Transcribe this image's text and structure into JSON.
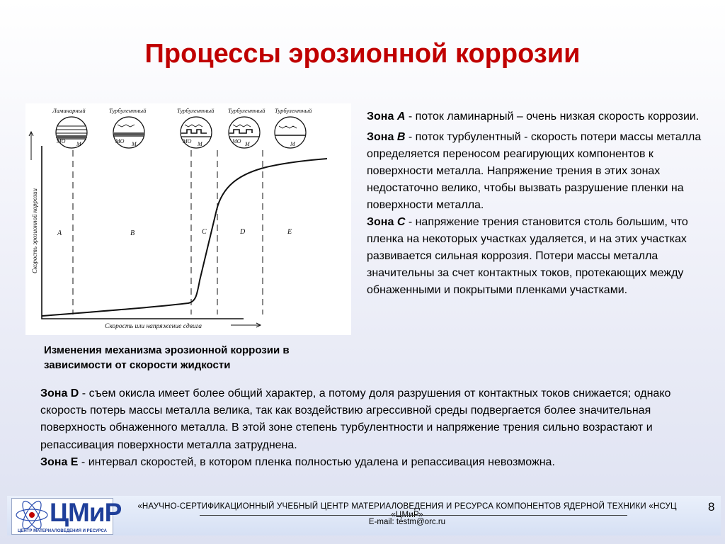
{
  "title": "Процессы эрозионной коррозии",
  "figure": {
    "regime_labels": [
      "Ламинарный",
      "Турбулентный",
      "Турбулентный",
      "Турбулентный",
      "Турбулентный"
    ],
    "film_label": "МО",
    "metal_label": "М",
    "zones": [
      "A",
      "B",
      "C",
      "D",
      "E"
    ],
    "y_axis_label": "Скорость эрозионной коррозии",
    "x_axis_label": "Скорость или напряжение сдвига"
  },
  "caption": "Изменения механизма эрозионной коррозии в зависимости от скорости жидкости",
  "right": {
    "zone_a_label": "Зона",
    "zone_a_letter": "A",
    "zone_a_text": " - поток ламинарный – очень низкая скорость коррозии.",
    "zone_b_label": "Зона",
    "zone_b_letter": "B",
    "zone_b_text": " - поток турбулентный - скорость потери массы металла определяется переносом реагирующих компонентов  к  поверхности  металла. Напряжение  трения  в  этих зонах недостаточно велико, чтобы вызвать разрушение пленки на поверхности металла.",
    "zone_c_label": "Зона",
    "zone_c_letter": "C",
    "zone_c_text": " - напряжение трения становится столь большим, что пленка на некоторых участках удаляется, и на этих участках развивается сильная коррозия. Потери массы металла значительны за счет контактных токов, протекающих между обнаженными и покрытыми пленками участками."
  },
  "bottom": {
    "zone_d_label": "Зона D",
    "zone_d_text": " - съем окисла имеет более общий характер, а потому доля разрушения от контактных токов снижается; однако скорость потерь массы металла велика, так как воздействию агрессивной среды подвергается более значительная поверхность обнаженного металла. В этой зоне степень турбулентности и напряжение трения сильно возрастают и репассивация поверхности металла затруднена.",
    "zone_e_label": "Зона Е",
    "zone_e_text": " - интервал скоростей, в котором пленка полностью удалена и репассивация невозможна."
  },
  "footer": {
    "logo_text": "ЦМиР",
    "logo_subtitle": "ЦЕНТР МАТЕРИАЛОВЕДЕНИЯ И РЕСУРСА",
    "organization": "«НАУЧНО-СЕРТИФИКАЦИОННЫЙ УЧЕБНЫЙ ЦЕНТР МАТЕРИАЛОВЕДЕНИЯ И РЕСУРСА КОМПОНЕНТОВ ЯДЕРНОЙ ТЕХНИКИ «НСУЦ «ЦМиР»",
    "email": "E-mail: testm@orc.ru",
    "page_number": "8"
  },
  "colors": {
    "title": "#c00000",
    "logo": "#1f3f9a"
  }
}
